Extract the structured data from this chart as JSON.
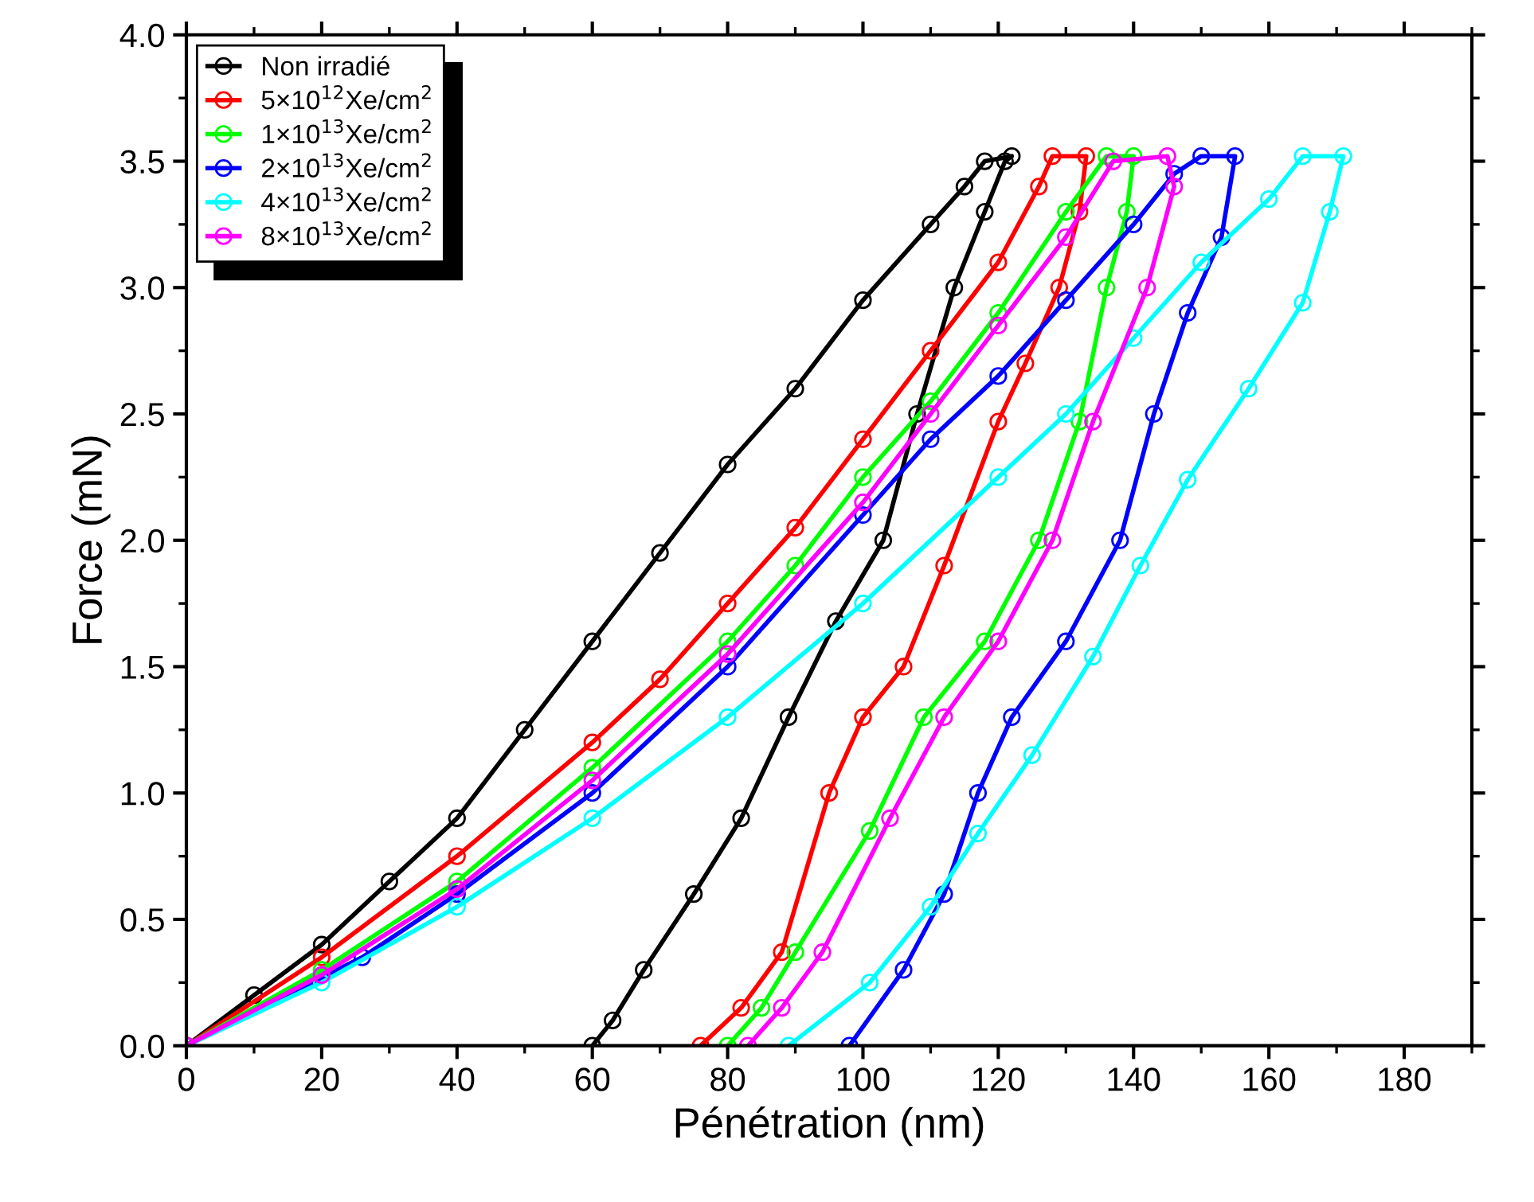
{
  "chart_data": {
    "type": "line",
    "xlabel": "Pénétration (nm)",
    "ylabel": "Force (mN)",
    "xlim": [
      0,
      190
    ],
    "ylim": [
      0,
      4.0
    ],
    "xticks": [
      0,
      20,
      40,
      60,
      80,
      100,
      120,
      140,
      160,
      180
    ],
    "yticks": [
      {
        "value": 0,
        "label": "0.0"
      },
      {
        "value": 0.5,
        "label": "0.5"
      },
      {
        "value": 1,
        "label": "1.0"
      },
      {
        "value": 1.5,
        "label": "1.5"
      },
      {
        "value": 2,
        "label": "2.0"
      },
      {
        "value": 2.5,
        "label": "2.5"
      },
      {
        "value": 3,
        "label": "3.0"
      },
      {
        "value": 3.5,
        "label": "3.5"
      },
      {
        "value": 4,
        "label": "4.0"
      }
    ],
    "grid": false,
    "legend": "top left",
    "marker": "circle",
    "line_style": "solid",
    "series": [
      {
        "name": "Non irradié",
        "color": "#000000",
        "x": [
          0,
          10,
          20,
          30,
          40,
          50,
          60,
          70,
          80,
          90,
          100,
          110,
          115,
          118,
          122,
          121,
          118,
          113.5,
          108,
          103,
          96,
          89,
          82,
          75,
          67.6,
          63,
          60
        ],
        "values": [
          0,
          0.2,
          0.4,
          0.65,
          0.9,
          1.25,
          1.6,
          1.95,
          2.3,
          2.6,
          2.95,
          3.25,
          3.4,
          3.5,
          3.52,
          3.5,
          3.3,
          3.0,
          2.5,
          2.0,
          1.68,
          1.3,
          0.9,
          0.6,
          0.3,
          0.1,
          0
        ]
      },
      {
        "name": "5×10$^{12}$Xe/cm$^{2}$",
        "color": "#ff0000",
        "x": [
          0,
          20,
          40,
          60,
          70,
          80,
          90,
          100,
          110,
          120,
          126,
          128,
          133,
          132,
          129,
          124,
          120,
          112,
          106,
          100,
          95,
          88,
          82,
          76
        ],
        "values": [
          0,
          0.35,
          0.75,
          1.2,
          1.45,
          1.75,
          2.05,
          2.4,
          2.75,
          3.1,
          3.4,
          3.52,
          3.52,
          3.3,
          3.0,
          2.7,
          2.47,
          1.9,
          1.5,
          1.3,
          1.0,
          0.37,
          0.15,
          0
        ]
      },
      {
        "name": "1×10$^{13}$Xe/cm$^{2}$",
        "color": "#00ff00",
        "x": [
          0,
          20,
          40,
          60,
          80,
          90,
          100,
          110,
          120,
          130,
          136,
          140,
          139,
          136,
          132,
          126,
          118,
          109,
          101,
          90,
          85,
          80
        ],
        "values": [
          0,
          0.3,
          0.65,
          1.1,
          1.6,
          1.9,
          2.25,
          2.55,
          2.9,
          3.3,
          3.52,
          3.52,
          3.3,
          3.0,
          2.47,
          2.0,
          1.6,
          1.3,
          0.85,
          0.37,
          0.15,
          0
        ]
      },
      {
        "name": "2×10$^{13}$Xe/cm$^{2}$",
        "color": "#0000ff",
        "x": [
          0,
          26,
          40,
          60,
          80,
          100,
          110,
          120,
          130,
          140,
          146,
          150,
          155,
          153,
          148,
          143,
          138,
          130,
          122,
          117,
          112,
          106,
          98
        ],
        "values": [
          0,
          0.35,
          0.6,
          1.0,
          1.5,
          2.1,
          2.4,
          2.65,
          2.95,
          3.25,
          3.45,
          3.52,
          3.52,
          3.2,
          2.9,
          2.5,
          2.0,
          1.6,
          1.3,
          1.0,
          0.6,
          0.3,
          0
        ]
      },
      {
        "name": "4×10$^{13}$Xe/cm$^{2}$",
        "color": "#00ffff",
        "x": [
          0,
          20,
          40,
          60,
          80,
          100,
          120,
          130,
          140,
          150,
          160,
          165,
          171,
          169,
          165,
          157,
          148,
          141,
          134,
          125,
          117,
          110,
          101,
          89
        ],
        "values": [
          0,
          0.25,
          0.55,
          0.9,
          1.3,
          1.75,
          2.25,
          2.5,
          2.8,
          3.1,
          3.35,
          3.52,
          3.52,
          3.3,
          2.94,
          2.6,
          2.24,
          1.9,
          1.54,
          1.15,
          0.84,
          0.55,
          0.25,
          0
        ]
      },
      {
        "name": "8×10$^{13}$Xe/cm$^{2}$",
        "color": "#ff00ff",
        "x": [
          0,
          20,
          40,
          60,
          80,
          100,
          110,
          120,
          130,
          137,
          145,
          146,
          142,
          134,
          128,
          120,
          112,
          104,
          94,
          88,
          83
        ],
        "values": [
          0,
          0.28,
          0.62,
          1.05,
          1.55,
          2.15,
          2.5,
          2.85,
          3.2,
          3.5,
          3.52,
          3.4,
          3.0,
          2.47,
          2.0,
          1.6,
          1.3,
          0.9,
          0.37,
          0.15,
          0
        ]
      }
    ]
  }
}
